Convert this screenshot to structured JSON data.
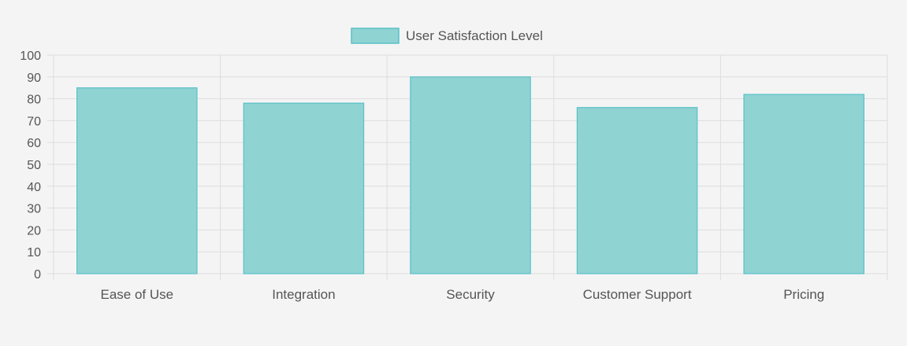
{
  "chart_data": {
    "type": "bar",
    "categories": [
      "Ease of Use",
      "Integration",
      "Security",
      "Customer Support",
      "Pricing"
    ],
    "series": [
      {
        "name": "User Satisfaction Level",
        "values": [
          85,
          78,
          90,
          76,
          82
        ]
      }
    ],
    "ylim": [
      0,
      100
    ],
    "ytick_step": 10,
    "yticks": [
      "0",
      "10",
      "20",
      "30",
      "40",
      "50",
      "60",
      "70",
      "80",
      "90",
      "100"
    ],
    "grid": true,
    "legend": "top-center",
    "colors": {
      "bar_fill": "#8fd3d3",
      "bar_stroke": "#5bc0c8",
      "grid": "#dddddd",
      "text": "#555555"
    }
  }
}
